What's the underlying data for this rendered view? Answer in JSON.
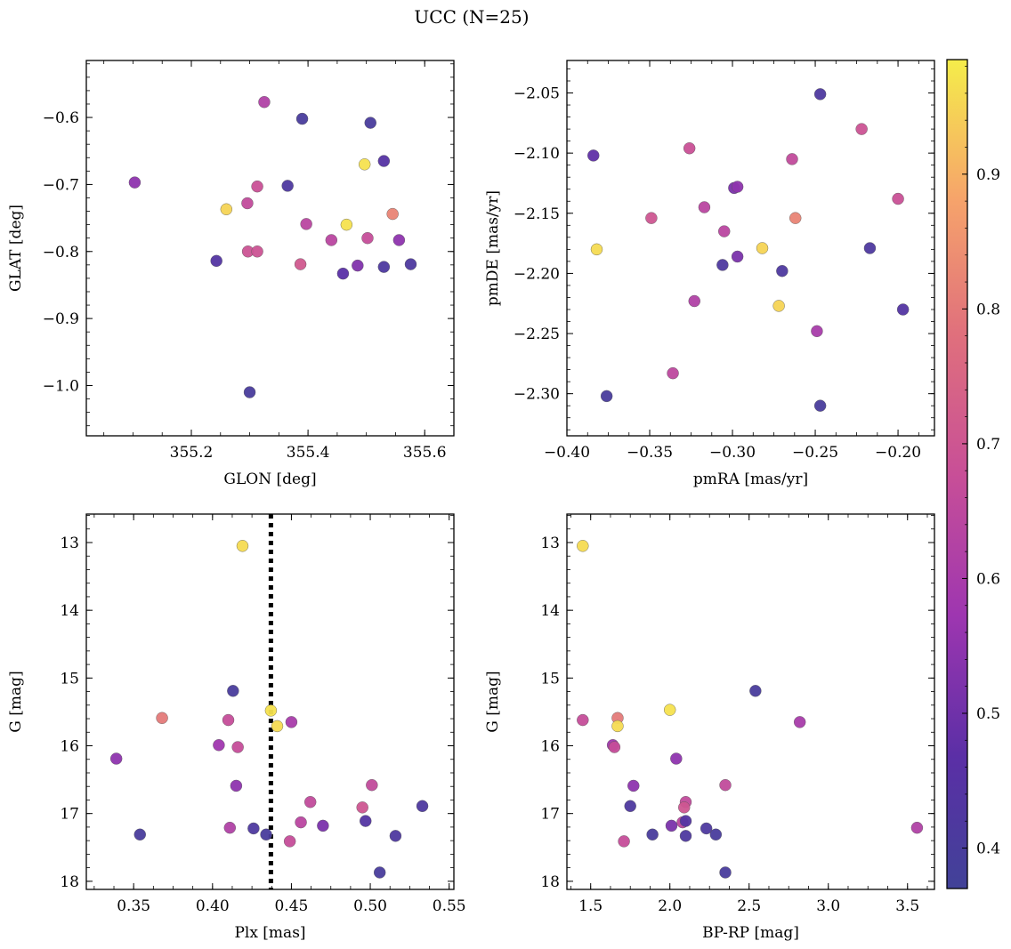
{
  "figure": {
    "title": "UCC (N=25)"
  },
  "colorbar": {
    "min": 0.37,
    "max": 0.985,
    "ticks": [
      "0.4",
      "0.5",
      "0.6",
      "0.7",
      "0.8",
      "0.9"
    ],
    "tick_values": [
      0.4,
      0.5,
      0.6,
      0.7,
      0.8,
      0.9
    ],
    "colormap": "plasma",
    "colors": [
      "#414298",
      "#5b2fa6",
      "#9e36b0",
      "#c84f97",
      "#e0707c",
      "#f6a36b",
      "#f5ed4a"
    ]
  },
  "chart_data": [
    {
      "type": "scatter",
      "xlabel": "GLON [deg]",
      "ylabel": "GLAT [deg]",
      "xlim": [
        355.02,
        355.65
      ],
      "ylim": [
        -1.075,
        -0.515
      ],
      "xticks": [
        "355.2",
        "355.4",
        "355.6"
      ],
      "xtick_values": [
        355.2,
        355.4,
        355.6
      ],
      "yticks": [
        "−0.6",
        "−0.7",
        "−0.8",
        "−0.9",
        "−1.0"
      ],
      "ytick_values": [
        -0.6,
        -0.7,
        -0.8,
        -0.9,
        -1.0
      ],
      "points": [
        {
          "x": 355.103,
          "y": -0.697,
          "c": 0.55
        },
        {
          "x": 355.325,
          "y": -0.577,
          "c": 0.62
        },
        {
          "x": 355.39,
          "y": -0.602,
          "c": 0.4
        },
        {
          "x": 355.507,
          "y": -0.608,
          "c": 0.4
        },
        {
          "x": 355.53,
          "y": -0.665,
          "c": 0.45
        },
        {
          "x": 355.497,
          "y": -0.67,
          "c": 0.97
        },
        {
          "x": 355.365,
          "y": -0.702,
          "c": 0.42
        },
        {
          "x": 355.313,
          "y": -0.703,
          "c": 0.68
        },
        {
          "x": 355.296,
          "y": -0.728,
          "c": 0.66
        },
        {
          "x": 355.26,
          "y": -0.737,
          "c": 0.95
        },
        {
          "x": 355.545,
          "y": -0.744,
          "c": 0.82
        },
        {
          "x": 355.466,
          "y": -0.76,
          "c": 0.97
        },
        {
          "x": 355.397,
          "y": -0.759,
          "c": 0.64
        },
        {
          "x": 355.44,
          "y": -0.783,
          "c": 0.64
        },
        {
          "x": 355.502,
          "y": -0.78,
          "c": 0.67
        },
        {
          "x": 355.556,
          "y": -0.783,
          "c": 0.55
        },
        {
          "x": 355.297,
          "y": -0.8,
          "c": 0.69
        },
        {
          "x": 355.313,
          "y": -0.8,
          "c": 0.69
        },
        {
          "x": 355.243,
          "y": -0.814,
          "c": 0.44
        },
        {
          "x": 355.387,
          "y": -0.819,
          "c": 0.71
        },
        {
          "x": 355.485,
          "y": -0.821,
          "c": 0.53
        },
        {
          "x": 355.53,
          "y": -0.823,
          "c": 0.42
        },
        {
          "x": 355.576,
          "y": -0.819,
          "c": 0.42
        },
        {
          "x": 355.46,
          "y": -0.833,
          "c": 0.47
        },
        {
          "x": 355.3,
          "y": -1.01,
          "c": 0.4
        }
      ]
    },
    {
      "type": "scatter",
      "xlabel": "pmRA [mas/yr]",
      "ylabel": "pmDE [mas/yr]",
      "xlim": [
        -0.4,
        -0.178
      ],
      "ylim": [
        -2.335,
        -2.023
      ],
      "xticks": [
        "−0.40",
        "−0.35",
        "−0.30",
        "−0.25",
        "−0.20"
      ],
      "xtick_values": [
        -0.4,
        -0.35,
        -0.3,
        -0.25,
        -0.2
      ],
      "yticks": [
        "−2.05",
        "−2.10",
        "−2.15",
        "−2.20",
        "−2.25",
        "−2.30"
      ],
      "ytick_values": [
        -2.05,
        -2.1,
        -2.15,
        -2.2,
        -2.25,
        -2.3
      ],
      "points": [
        {
          "x": -0.247,
          "y": -2.051,
          "c": 0.42
        },
        {
          "x": -0.222,
          "y": -2.08,
          "c": 0.69
        },
        {
          "x": -0.384,
          "y": -2.102,
          "c": 0.48
        },
        {
          "x": -0.326,
          "y": -2.096,
          "c": 0.68
        },
        {
          "x": -0.264,
          "y": -2.105,
          "c": 0.66
        },
        {
          "x": -0.299,
          "y": -2.129,
          "c": 0.52
        },
        {
          "x": -0.297,
          "y": -2.128,
          "c": 0.55
        },
        {
          "x": -0.2,
          "y": -2.138,
          "c": 0.68
        },
        {
          "x": -0.317,
          "y": -2.145,
          "c": 0.64
        },
        {
          "x": -0.349,
          "y": -2.154,
          "c": 0.7
        },
        {
          "x": -0.262,
          "y": -2.154,
          "c": 0.82
        },
        {
          "x": -0.305,
          "y": -2.165,
          "c": 0.64
        },
        {
          "x": -0.382,
          "y": -2.18,
          "c": 0.96
        },
        {
          "x": -0.282,
          "y": -2.179,
          "c": 0.95
        },
        {
          "x": -0.217,
          "y": -2.179,
          "c": 0.42
        },
        {
          "x": -0.306,
          "y": -2.193,
          "c": 0.42
        },
        {
          "x": -0.297,
          "y": -2.186,
          "c": 0.52
        },
        {
          "x": -0.27,
          "y": -2.198,
          "c": 0.42
        },
        {
          "x": -0.323,
          "y": -2.223,
          "c": 0.62
        },
        {
          "x": -0.272,
          "y": -2.227,
          "c": 0.95
        },
        {
          "x": -0.197,
          "y": -2.23,
          "c": 0.44
        },
        {
          "x": -0.249,
          "y": -2.248,
          "c": 0.6
        },
        {
          "x": -0.336,
          "y": -2.283,
          "c": 0.65
        },
        {
          "x": -0.376,
          "y": -2.302,
          "c": 0.4
        },
        {
          "x": -0.247,
          "y": -2.31,
          "c": 0.4
        }
      ]
    },
    {
      "type": "scatter",
      "xlabel": "Plx [mas]",
      "ylabel": "G [mag]",
      "xlim": [
        0.32,
        0.553
      ],
      "ylim": [
        18.12,
        12.58
      ],
      "xticks": [
        "0.35",
        "0.40",
        "0.45",
        "0.50",
        "0.55"
      ],
      "xtick_values": [
        0.35,
        0.4,
        0.45,
        0.5,
        0.55
      ],
      "yticks": [
        "13",
        "14",
        "15",
        "16",
        "17",
        "18"
      ],
      "ytick_values": [
        13,
        14,
        15,
        16,
        17,
        18
      ],
      "vline": {
        "x": 0.437,
        "style": "dotted"
      },
      "points": [
        {
          "x": 0.419,
          "y": 13.05,
          "c": 0.96
        },
        {
          "x": 0.413,
          "y": 15.19,
          "c": 0.4
        },
        {
          "x": 0.437,
          "y": 15.48,
          "c": 0.97
        },
        {
          "x": 0.368,
          "y": 15.59,
          "c": 0.8
        },
        {
          "x": 0.41,
          "y": 15.62,
          "c": 0.67
        },
        {
          "x": 0.441,
          "y": 15.71,
          "c": 0.96
        },
        {
          "x": 0.45,
          "y": 15.65,
          "c": 0.6
        },
        {
          "x": 0.404,
          "y": 15.99,
          "c": 0.58
        },
        {
          "x": 0.416,
          "y": 16.02,
          "c": 0.67
        },
        {
          "x": 0.339,
          "y": 16.19,
          "c": 0.55
        },
        {
          "x": 0.415,
          "y": 16.59,
          "c": 0.55
        },
        {
          "x": 0.501,
          "y": 16.58,
          "c": 0.66
        },
        {
          "x": 0.462,
          "y": 16.83,
          "c": 0.66
        },
        {
          "x": 0.495,
          "y": 16.91,
          "c": 0.7
        },
        {
          "x": 0.533,
          "y": 16.89,
          "c": 0.42
        },
        {
          "x": 0.456,
          "y": 17.13,
          "c": 0.64
        },
        {
          "x": 0.47,
          "y": 17.18,
          "c": 0.52
        },
        {
          "x": 0.497,
          "y": 17.11,
          "c": 0.44
        },
        {
          "x": 0.411,
          "y": 17.21,
          "c": 0.62
        },
        {
          "x": 0.426,
          "y": 17.22,
          "c": 0.42
        },
        {
          "x": 0.434,
          "y": 17.31,
          "c": 0.4
        },
        {
          "x": 0.354,
          "y": 17.31,
          "c": 0.4
        },
        {
          "x": 0.449,
          "y": 17.41,
          "c": 0.67
        },
        {
          "x": 0.516,
          "y": 17.33,
          "c": 0.42
        },
        {
          "x": 0.506,
          "y": 17.87,
          "c": 0.4
        }
      ]
    },
    {
      "type": "scatter",
      "xlabel": "BP-RP [mag]",
      "ylabel": "G [mag]",
      "xlim": [
        1.35,
        3.67
      ],
      "ylim": [
        18.12,
        12.58
      ],
      "xticks": [
        "1.5",
        "2.0",
        "2.5",
        "3.0",
        "3.5"
      ],
      "xtick_values": [
        1.5,
        2.0,
        2.5,
        3.0,
        3.5
      ],
      "yticks": [
        "13",
        "14",
        "15",
        "16",
        "17",
        "18"
      ],
      "ytick_values": [
        13,
        14,
        15,
        16,
        17,
        18
      ],
      "points": [
        {
          "x": 1.45,
          "y": 13.05,
          "c": 0.96
        },
        {
          "x": 2.54,
          "y": 15.19,
          "c": 0.4
        },
        {
          "x": 2.0,
          "y": 15.47,
          "c": 0.97
        },
        {
          "x": 1.45,
          "y": 15.62,
          "c": 0.67
        },
        {
          "x": 1.67,
          "y": 15.59,
          "c": 0.8
        },
        {
          "x": 1.67,
          "y": 15.71,
          "c": 0.96
        },
        {
          "x": 2.82,
          "y": 15.65,
          "c": 0.6
        },
        {
          "x": 1.64,
          "y": 15.99,
          "c": 0.58
        },
        {
          "x": 1.65,
          "y": 16.02,
          "c": 0.67
        },
        {
          "x": 2.04,
          "y": 16.19,
          "c": 0.55
        },
        {
          "x": 1.77,
          "y": 16.59,
          "c": 0.55
        },
        {
          "x": 2.35,
          "y": 16.58,
          "c": 0.66
        },
        {
          "x": 2.1,
          "y": 16.83,
          "c": 0.66
        },
        {
          "x": 2.09,
          "y": 16.91,
          "c": 0.7
        },
        {
          "x": 1.75,
          "y": 16.89,
          "c": 0.42
        },
        {
          "x": 2.08,
          "y": 17.13,
          "c": 0.64
        },
        {
          "x": 2.01,
          "y": 17.18,
          "c": 0.52
        },
        {
          "x": 2.1,
          "y": 17.11,
          "c": 0.44
        },
        {
          "x": 3.56,
          "y": 17.21,
          "c": 0.62
        },
        {
          "x": 2.23,
          "y": 17.22,
          "c": 0.42
        },
        {
          "x": 2.29,
          "y": 17.31,
          "c": 0.4
        },
        {
          "x": 1.89,
          "y": 17.31,
          "c": 0.4
        },
        {
          "x": 1.71,
          "y": 17.41,
          "c": 0.67
        },
        {
          "x": 2.1,
          "y": 17.33,
          "c": 0.42
        },
        {
          "x": 2.35,
          "y": 17.87,
          "c": 0.4
        }
      ]
    }
  ]
}
